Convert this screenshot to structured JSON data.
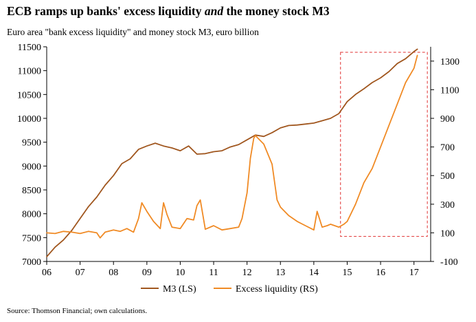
{
  "title": {
    "part1": "ECB ramps up banks' excess liquidity ",
    "emph": "and",
    "part2": " the money stock M3"
  },
  "subtitle": "Euro area \"bank excess liquidity\" and money stock M3, euro billion",
  "source": "Source: Thomson Financial; own calculations.",
  "chart_data": {
    "type": "line",
    "x_ticks": [
      "06",
      "07",
      "08",
      "09",
      "10",
      "11",
      "12",
      "13",
      "14",
      "15",
      "16",
      "17"
    ],
    "left_axis": {
      "ticks": [
        7000,
        7500,
        8000,
        8500,
        9000,
        9500,
        10000,
        10500,
        11000,
        11500
      ],
      "ylim": [
        7000,
        11500
      ]
    },
    "right_axis": {
      "ticks": [
        -100,
        100,
        300,
        500,
        700,
        900,
        1100,
        1300
      ],
      "ylim": [
        -100,
        1400
      ]
    },
    "grid": false,
    "legend_position": "bottom-center",
    "highlight_box": {
      "x_start": 2014.8,
      "x_end": 2017.4,
      "style": "dashed red rectangle"
    },
    "colors": {
      "m3": "#a0561e",
      "excess": "#f08a24",
      "highlight": "#e03030"
    },
    "series": [
      {
        "name": "M3 (LS)",
        "axis": "left",
        "x": [
          2006.0,
          2006.25,
          2006.5,
          2006.75,
          2007.0,
          2007.25,
          2007.5,
          2007.75,
          2008.0,
          2008.25,
          2008.5,
          2008.75,
          2009.0,
          2009.25,
          2009.5,
          2009.75,
          2010.0,
          2010.25,
          2010.5,
          2010.75,
          2011.0,
          2011.25,
          2011.5,
          2011.75,
          2012.0,
          2012.25,
          2012.5,
          2012.75,
          2013.0,
          2013.25,
          2013.5,
          2013.75,
          2014.0,
          2014.25,
          2014.5,
          2014.75,
          2015.0,
          2015.25,
          2015.5,
          2015.75,
          2016.0,
          2016.25,
          2016.5,
          2016.75,
          2017.0,
          2017.1
        ],
        "values": [
          7100,
          7300,
          7450,
          7650,
          7900,
          8150,
          8350,
          8600,
          8800,
          9050,
          9150,
          9350,
          9420,
          9480,
          9420,
          9380,
          9320,
          9420,
          9250,
          9260,
          9300,
          9320,
          9400,
          9450,
          9550,
          9650,
          9620,
          9700,
          9800,
          9850,
          9860,
          9880,
          9900,
          9950,
          10000,
          10100,
          10350,
          10500,
          10620,
          10750,
          10850,
          10980,
          11150,
          11250,
          11400,
          11450
        ]
      },
      {
        "name": "Excess liquidity (RS)",
        "axis": "right",
        "x": [
          2006.0,
          2006.25,
          2006.5,
          2006.75,
          2007.0,
          2007.25,
          2007.5,
          2007.6,
          2007.75,
          2008.0,
          2008.2,
          2008.4,
          2008.6,
          2008.75,
          2008.85,
          2009.0,
          2009.2,
          2009.4,
          2009.5,
          2009.6,
          2009.75,
          2010.0,
          2010.2,
          2010.4,
          2010.5,
          2010.6,
          2010.75,
          2011.0,
          2011.25,
          2011.5,
          2011.75,
          2011.85,
          2012.0,
          2012.1,
          2012.2,
          2012.25,
          2012.5,
          2012.75,
          2012.9,
          2013.0,
          2013.25,
          2013.5,
          2013.75,
          2014.0,
          2014.1,
          2014.25,
          2014.4,
          2014.5,
          2014.75,
          2014.9,
          2015.0,
          2015.25,
          2015.5,
          2015.75,
          2016.0,
          2016.25,
          2016.5,
          2016.75,
          2017.0,
          2017.1
        ],
        "values": [
          100,
          95,
          110,
          105,
          95,
          110,
          100,
          65,
          105,
          120,
          110,
          130,
          105,
          200,
          310,
          250,
          180,
          130,
          310,
          230,
          140,
          130,
          200,
          190,
          290,
          330,
          125,
          150,
          120,
          130,
          140,
          200,
          380,
          620,
          760,
          780,
          720,
          580,
          330,
          280,
          220,
          180,
          150,
          120,
          250,
          140,
          150,
          160,
          140,
          160,
          180,
          300,
          450,
          550,
          700,
          850,
          1000,
          1150,
          1250,
          1340
        ]
      }
    ]
  }
}
